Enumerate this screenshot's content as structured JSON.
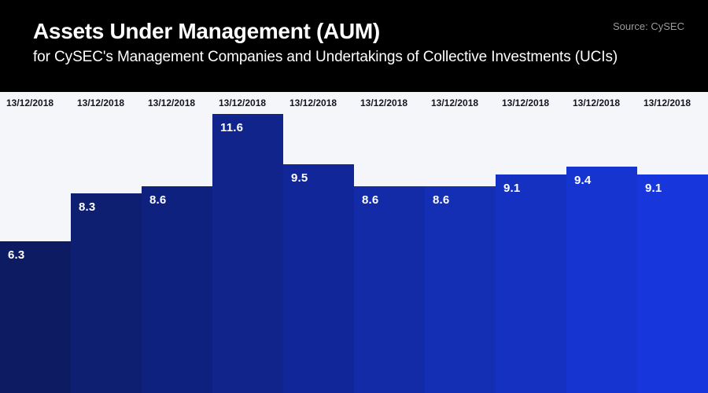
{
  "header": {
    "title": "Assets Under Management (AUM)",
    "subtitle": "for CySEC's Management Companies and Undertakings of Collective Investments (UCIs)",
    "source": "Source: CySEC"
  },
  "colors": {
    "header_bg": "#000000",
    "chart_bg": "#f5f6fa",
    "title_text": "#ffffff",
    "subtitle_text": "#ffffff",
    "source_text": "#9b9b9b",
    "date_label_text": "#14151f",
    "value_label_text": "#ffffff",
    "bar_gradient_start": "#0d1b63",
    "bar_gradient_end": "#1737dd"
  },
  "chart_data": {
    "type": "bar",
    "title": "Assets Under Management (AUM)",
    "subtitle": "for CySEC's Management Companies and Undertakings of Collective Investments (UCIs)",
    "source": "Source: CySEC",
    "categories": [
      "13/12/2018",
      "13/12/2018",
      "13/12/2018",
      "13/12/2018",
      "13/12/2018",
      "13/12/2018",
      "13/12/2018",
      "13/12/2018",
      "13/12/2018",
      "13/12/2018"
    ],
    "values": [
      6.3,
      8.3,
      8.6,
      11.6,
      9.5,
      8.6,
      8.6,
      9.1,
      9.4,
      9.1
    ],
    "bar_colors": [
      "#0d1b63",
      "#0e1e71",
      "#0f217e",
      "#10248c",
      "#112799",
      "#132ba7",
      "#142eb4",
      "#1531c2",
      "#1634cf",
      "#1737dd"
    ],
    "xlabel": "",
    "ylabel": "",
    "ylim": [
      0,
      12.5
    ],
    "grid": false,
    "legend": false,
    "value_labels_position": "inside-top-left",
    "category_labels_position": "above-bars-top-left"
  }
}
